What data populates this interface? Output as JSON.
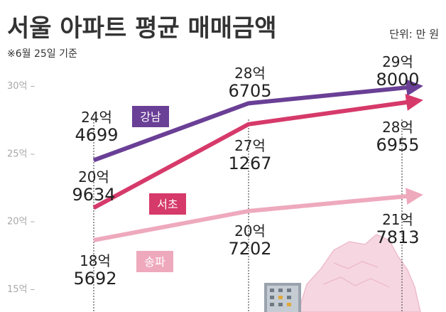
{
  "title": "서울 아파트 평균 매매금액",
  "unit": "단위: 만 원",
  "note": "※6월 25일 기준",
  "chart_data": {
    "type": "line",
    "title": "서울 아파트 평균 매매금액",
    "note": "※6월 25일 기준",
    "unit": "단위: 만 원",
    "x": [
      "",
      "",
      ""
    ],
    "yticks": [
      "15억",
      "20억",
      "25억",
      "30억"
    ],
    "ylim": [
      15,
      30
    ],
    "grid": false,
    "colors": {
      "강남": "#6a3f96",
      "서초": "#d63a6a",
      "송파": "#eea9bd"
    },
    "series": [
      {
        "name": "강남",
        "values": [
          244699,
          286705,
          298000
        ],
        "labels": [
          [
            "24억",
            "4699"
          ],
          [
            "28억",
            "6705"
          ],
          [
            "29억",
            "8000"
          ]
        ]
      },
      {
        "name": "서초",
        "values": [
          209634,
          271267,
          286955
        ],
        "labels": [
          [
            "20억",
            "9634"
          ],
          [
            "27억",
            "1267"
          ],
          [
            "28억",
            "6955"
          ]
        ]
      },
      {
        "name": "송파",
        "values": [
          185692,
          207202,
          217813
        ],
        "labels": [
          [
            "18억",
            "5692"
          ],
          [
            "20억",
            "7202"
          ],
          [
            "21억",
            "7813"
          ]
        ]
      }
    ]
  }
}
